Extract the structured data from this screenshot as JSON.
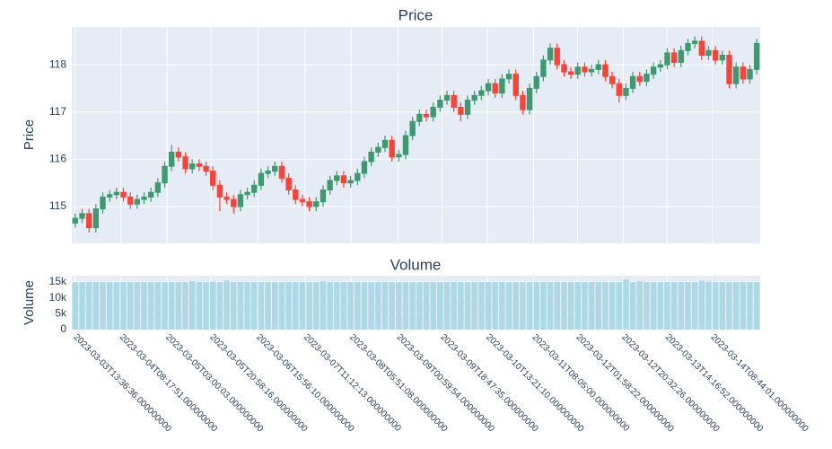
{
  "chart_data": [
    {
      "type": "candlestick",
      "title": "Price",
      "y_label": "Price",
      "increasing_color": "#3d9970",
      "decreasing_color": "#ff4136",
      "ylim": [
        114.22,
        118.8
      ],
      "yticks": [
        115,
        116,
        117,
        118
      ],
      "grid": true,
      "open": [
        114.65,
        114.75,
        114.85,
        114.55,
        114.95,
        115.2,
        115.25,
        115.3,
        115.2,
        115.05,
        115.15,
        115.2,
        115.3,
        115.5,
        115.85,
        116.15,
        116.05,
        115.8,
        115.9,
        115.85,
        115.75,
        115.45,
        115.2,
        115.15,
        115.0,
        115.25,
        115.3,
        115.45,
        115.7,
        115.75,
        115.85,
        115.6,
        115.35,
        115.15,
        115.1,
        115.0,
        115.1,
        115.35,
        115.55,
        115.65,
        115.5,
        115.55,
        115.7,
        115.95,
        116.15,
        116.25,
        116.4,
        116.05,
        116.1,
        116.5,
        116.8,
        116.95,
        116.9,
        117.1,
        117.25,
        117.35,
        117.1,
        116.95,
        117.25,
        117.35,
        117.45,
        117.6,
        117.4,
        117.7,
        117.8,
        117.35,
        117.05,
        117.5,
        117.75,
        118.1,
        118.35,
        118.0,
        117.85,
        117.8,
        117.95,
        117.85,
        117.9,
        118.0,
        117.75,
        117.6,
        117.35,
        117.5,
        117.75,
        117.65,
        117.8,
        117.95,
        118.0,
        118.25,
        118.05,
        118.3,
        118.45,
        118.5,
        118.2,
        118.3,
        118.1,
        118.2,
        117.6,
        117.95,
        117.7,
        117.9
      ],
      "high": [
        114.85,
        114.95,
        114.95,
        115.05,
        115.3,
        115.35,
        115.4,
        115.4,
        115.3,
        115.25,
        115.3,
        115.4,
        115.6,
        115.95,
        116.3,
        116.25,
        116.15,
        116.0,
        116.0,
        115.95,
        115.85,
        115.55,
        115.3,
        115.25,
        115.35,
        115.4,
        115.55,
        115.8,
        115.85,
        115.95,
        115.95,
        115.7,
        115.45,
        115.25,
        115.2,
        115.2,
        115.45,
        115.65,
        115.75,
        115.75,
        115.65,
        115.8,
        116.05,
        116.25,
        116.35,
        116.5,
        116.5,
        116.2,
        116.6,
        116.9,
        117.05,
        117.05,
        117.2,
        117.35,
        117.45,
        117.45,
        117.2,
        117.35,
        117.45,
        117.55,
        117.7,
        117.7,
        117.8,
        117.9,
        117.9,
        117.45,
        117.6,
        117.85,
        118.2,
        118.45,
        118.45,
        118.1,
        117.95,
        118.05,
        118.05,
        118.0,
        118.1,
        118.1,
        117.85,
        117.7,
        117.6,
        117.85,
        117.85,
        117.9,
        118.05,
        118.1,
        118.35,
        118.35,
        118.4,
        118.55,
        118.6,
        118.6,
        118.4,
        118.4,
        118.3,
        118.3,
        118.05,
        118.05,
        118.0,
        118.55
      ],
      "low": [
        114.55,
        114.65,
        114.45,
        114.45,
        114.85,
        115.1,
        115.15,
        115.1,
        114.95,
        114.95,
        115.05,
        115.1,
        115.2,
        115.4,
        115.75,
        115.95,
        115.7,
        115.7,
        115.75,
        115.65,
        115.35,
        114.9,
        115.05,
        114.85,
        114.9,
        115.15,
        115.2,
        115.35,
        115.6,
        115.65,
        115.5,
        115.25,
        115.05,
        115.0,
        114.9,
        114.9,
        115.0,
        115.25,
        115.45,
        115.4,
        115.4,
        115.45,
        115.6,
        115.85,
        116.05,
        116.15,
        115.95,
        115.95,
        116.0,
        116.4,
        116.7,
        116.8,
        116.8,
        117.0,
        117.15,
        117.0,
        116.8,
        116.85,
        117.15,
        117.25,
        117.35,
        117.3,
        117.3,
        117.6,
        117.25,
        116.95,
        116.95,
        117.4,
        117.65,
        118.0,
        117.9,
        117.75,
        117.7,
        117.7,
        117.75,
        117.75,
        117.8,
        117.65,
        117.5,
        117.2,
        117.25,
        117.4,
        117.55,
        117.55,
        117.7,
        117.85,
        117.9,
        117.95,
        117.95,
        118.2,
        118.35,
        118.1,
        118.1,
        118.0,
        118.0,
        117.5,
        117.5,
        117.6,
        117.6,
        117.8
      ],
      "close": [
        114.75,
        114.85,
        114.55,
        114.95,
        115.2,
        115.25,
        115.3,
        115.2,
        115.05,
        115.15,
        115.2,
        115.3,
        115.5,
        115.85,
        116.15,
        116.05,
        115.8,
        115.9,
        115.85,
        115.75,
        115.45,
        115.2,
        115.15,
        115.0,
        115.25,
        115.3,
        115.45,
        115.7,
        115.75,
        115.85,
        115.6,
        115.35,
        115.15,
        115.1,
        115.0,
        115.1,
        115.35,
        115.55,
        115.65,
        115.5,
        115.55,
        115.7,
        115.95,
        116.15,
        116.25,
        116.4,
        116.05,
        116.1,
        116.5,
        116.8,
        116.95,
        116.9,
        117.1,
        117.25,
        117.35,
        117.1,
        116.95,
        117.25,
        117.35,
        117.45,
        117.6,
        117.4,
        117.7,
        117.8,
        117.35,
        117.05,
        117.5,
        117.75,
        118.1,
        118.35,
        118.0,
        117.85,
        117.8,
        117.95,
        117.85,
        117.9,
        118.0,
        117.75,
        117.6,
        117.35,
        117.5,
        117.75,
        117.65,
        117.8,
        117.95,
        118.0,
        118.25,
        118.05,
        118.3,
        118.45,
        118.5,
        118.2,
        118.3,
        118.1,
        118.2,
        117.6,
        117.95,
        117.7,
        117.9,
        118.45
      ]
    },
    {
      "type": "bar",
      "title": "Volume",
      "y_label": "Volume",
      "color": "#add8e6",
      "ylim": [
        0,
        17000
      ],
      "yticks": [
        0,
        {
          "value": 5000,
          "label": "5k"
        },
        {
          "value": 10000,
          "label": "10k"
        },
        {
          "value": 15000,
          "label": "15k"
        }
      ],
      "grid": true,
      "xlim": [
        "2023-03-03T12:16",
        "2023-03-15T04:16"
      ],
      "xticks": [
        "2023-03-03T13:36:36.000000000",
        "2023-03-04T08:17:51.000000000",
        "2023-03-05T03:00:03.000000000",
        "2023-03-05T20:58:16.000000000",
        "2023-03-06T15:56:10.000000000",
        "2023-03-07T11:12:13.000000000",
        "2023-03-08T05:51:08.000000000",
        "2023-03-09T00:59:54.000000000",
        "2023-03-09T18:47:35.000000000",
        "2023-03-10T13:21:10.000000000",
        "2023-03-11T08:05:00.000000000",
        "2023-03-12T01:58:22.000000000",
        "2023-03-12T20:32:26.000000000",
        "2023-03-13T14:16:52.000000000",
        "2023-03-14T08:44:01.000000000"
      ],
      "x": [
        "2023-03-03T13:40",
        "2023-03-03T16:28",
        "2023-03-03T19:16",
        "2023-03-03T22:04",
        "2023-03-04T00:52",
        "2023-03-04T03:40",
        "2023-03-04T06:28",
        "2023-03-04T09:16",
        "2023-03-04T12:04",
        "2023-03-04T14:52",
        "2023-03-04T17:40",
        "2023-03-04T20:28",
        "2023-03-04T23:16",
        "2023-03-05T02:04",
        "2023-03-05T04:52",
        "2023-03-05T07:40",
        "2023-03-05T10:28",
        "2023-03-05T13:16",
        "2023-03-05T16:04",
        "2023-03-05T18:52",
        "2023-03-05T21:40",
        "2023-03-06T00:28",
        "2023-03-06T03:16",
        "2023-03-06T06:04",
        "2023-03-06T08:52",
        "2023-03-06T11:40",
        "2023-03-06T14:28",
        "2023-03-06T17:16",
        "2023-03-06T20:04",
        "2023-03-06T22:52",
        "2023-03-07T01:40",
        "2023-03-07T04:28",
        "2023-03-07T07:16",
        "2023-03-07T10:04",
        "2023-03-07T12:52",
        "2023-03-07T15:40",
        "2023-03-07T18:28",
        "2023-03-07T21:16",
        "2023-03-08T00:04",
        "2023-03-08T02:52",
        "2023-03-08T05:40",
        "2023-03-08T08:28",
        "2023-03-08T11:16",
        "2023-03-08T14:04",
        "2023-03-08T16:52",
        "2023-03-08T19:40",
        "2023-03-08T22:28",
        "2023-03-09T01:16",
        "2023-03-09T04:04",
        "2023-03-09T06:52",
        "2023-03-09T09:40",
        "2023-03-09T12:28",
        "2023-03-09T15:16",
        "2023-03-09T18:04",
        "2023-03-09T20:52",
        "2023-03-09T23:40",
        "2023-03-10T02:28",
        "2023-03-10T05:16",
        "2023-03-10T08:04",
        "2023-03-10T10:52",
        "2023-03-10T13:40",
        "2023-03-10T16:28",
        "2023-03-10T19:16",
        "2023-03-10T22:04",
        "2023-03-11T00:52",
        "2023-03-11T03:40",
        "2023-03-11T06:28",
        "2023-03-11T09:16",
        "2023-03-11T12:04",
        "2023-03-11T14:52",
        "2023-03-11T17:40",
        "2023-03-11T20:28",
        "2023-03-11T23:16",
        "2023-03-12T02:04",
        "2023-03-12T04:52",
        "2023-03-12T07:40",
        "2023-03-12T10:28",
        "2023-03-12T13:16",
        "2023-03-12T16:04",
        "2023-03-12T18:52",
        "2023-03-12T21:40",
        "2023-03-13T00:28",
        "2023-03-13T03:16",
        "2023-03-13T06:04",
        "2023-03-13T08:52",
        "2023-03-13T11:40",
        "2023-03-13T14:28",
        "2023-03-13T17:16",
        "2023-03-13T20:04",
        "2023-03-13T22:52",
        "2023-03-14T01:40",
        "2023-03-14T04:28",
        "2023-03-14T07:16",
        "2023-03-14T10:04",
        "2023-03-14T12:52",
        "2023-03-14T15:40",
        "2023-03-14T18:28",
        "2023-03-14T21:16",
        "2023-03-15T00:04",
        "2023-03-15T02:52"
      ],
      "values": [
        15000,
        15000,
        15000,
        15000,
        15000,
        15000,
        15000,
        15000,
        15000,
        15000,
        15000,
        15000,
        15000,
        15000,
        15000,
        15000,
        15000,
        15200,
        15000,
        15000,
        15100,
        15000,
        15500,
        15000,
        15000,
        15000,
        15000,
        15000,
        15000,
        15000,
        15000,
        15000,
        15000,
        15000,
        15000,
        15000,
        15200,
        15000,
        15000,
        15000,
        15000,
        15000,
        15000,
        15000,
        15000,
        15000,
        15000,
        15000,
        15000,
        15000,
        15000,
        15000,
        15000,
        15000,
        15000,
        15000,
        15000,
        15000,
        15000,
        15000,
        15000,
        15000,
        15000,
        15000,
        15000,
        15000,
        15000,
        15000,
        15000,
        15000,
        15000,
        15000,
        15000,
        15000,
        15000,
        15000,
        15000,
        15000,
        15000,
        15000,
        15800,
        15000,
        15200,
        15000,
        15000,
        15000,
        15000,
        15000,
        15000,
        15000,
        15000,
        15400,
        15100,
        15000,
        15000,
        15000,
        15000,
        15000,
        15000,
        15000
      ]
    }
  ]
}
